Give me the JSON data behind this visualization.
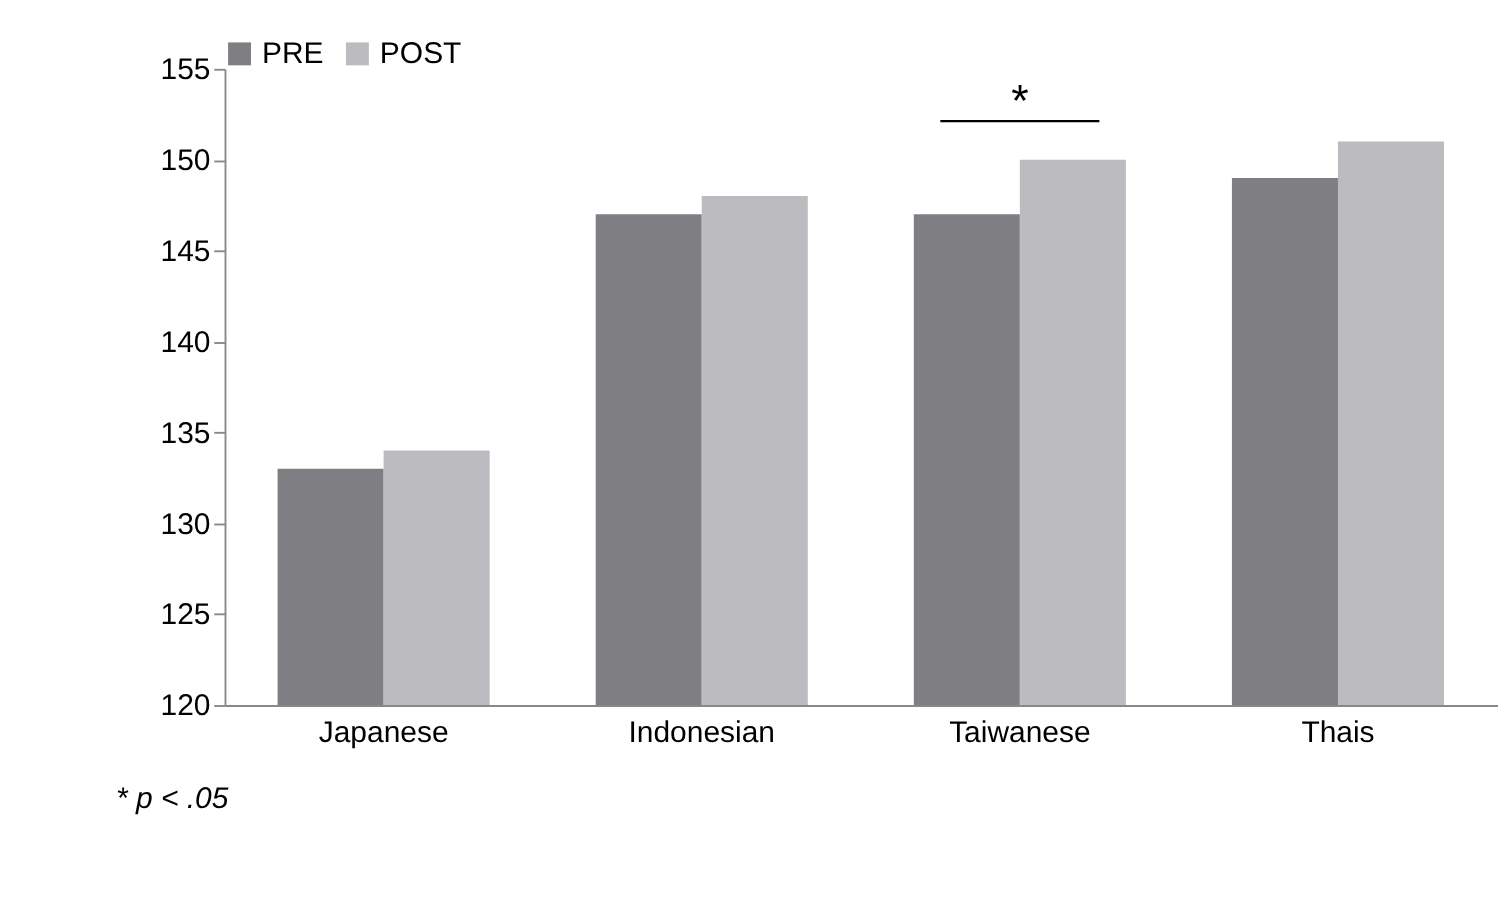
{
  "chart_data": {
    "type": "bar",
    "categories": [
      "Japanese",
      "Indonesian",
      "Taiwanese",
      "Thais"
    ],
    "series": [
      {
        "name": "PRE",
        "color": "#7f7f83",
        "values": [
          133,
          147,
          147,
          149
        ]
      },
      {
        "name": "POST",
        "color": "#bcbcc0",
        "values": [
          134,
          148,
          150,
          151
        ]
      }
    ],
    "ylim": [
      120,
      155
    ],
    "yticks": [
      120,
      125,
      130,
      135,
      140,
      145,
      150,
      155
    ],
    "grid": false,
    "legend": "top",
    "annotations": [
      "*",
      "* p < .05"
    ]
  }
}
